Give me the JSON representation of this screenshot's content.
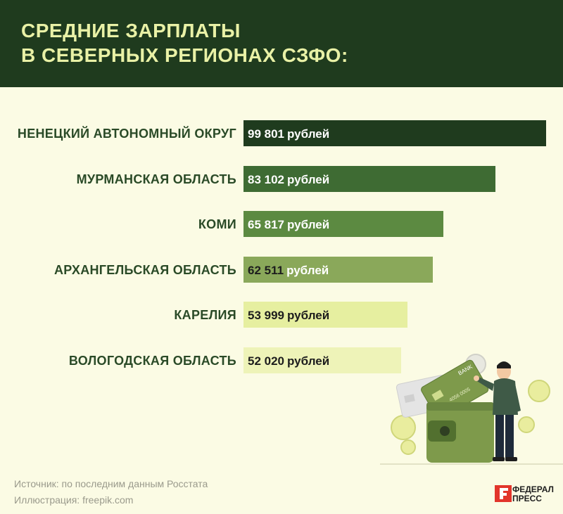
{
  "chart_data": {
    "type": "bar",
    "orientation": "horizontal",
    "title": "СРЕДНИЕ ЗАРПЛАТЫ В СЕВЕРНЫХ РЕГИОНАХ СЗФО:",
    "title_lines": [
      "СРЕДНИЕ ЗАРПЛАТЫ",
      "В СЕВЕРНЫХ РЕГИОНАХ СЗФО:"
    ],
    "categories": [
      "НЕНЕЦКИЙ АВТОНОМНЫЙ ОКРУГ",
      "МУРМАНСКАЯ ОБЛАСТЬ",
      "КОМИ",
      "АРХАНГЕЛЬСКАЯ ОБЛАСТЬ",
      "КАРЕЛИЯ",
      "ВОЛОГОДСКАЯ ОБЛАСТЬ"
    ],
    "values": [
      99801,
      83102,
      65817,
      62511,
      53999,
      52020
    ],
    "value_labels": [
      "99 801",
      "83 102",
      "65 817",
      "62 511",
      "53 999",
      "52 020"
    ],
    "unit": "рублей",
    "bar_colors": [
      "#1f3b1e",
      "#3e6b33",
      "#5c8a41",
      "#8aa85a",
      "#e6efa0",
      "#eef3b8"
    ],
    "value_text_colors": [
      "#ffffff",
      "#ffffff",
      "#ffffff",
      "#1d1d1d",
      "#1d1d1d",
      "#1d1d1d"
    ],
    "unit_text_colors": [
      "#ffffff",
      "#ffffff",
      "#ffffff",
      "#ffffff",
      "#1d1d1d",
      "#1d1d1d"
    ],
    "xlim": [
      0,
      100000
    ],
    "grid": false
  },
  "footer": {
    "source": "Источник: по последним данным Росстата",
    "illustration": "Иллюстрация: freepik.com",
    "logo_line1": "ФЕДЕРАЛ",
    "logo_line2": "ПРЕСС"
  },
  "colors": {
    "background": "#fbfbe4",
    "header_bg": "#1f3b1e",
    "title_color": "#e9f1a6",
    "label_color": "#2a4a27"
  },
  "illustration_items": {
    "card_text": "BANK",
    "card_digits": "4056 0005"
  }
}
